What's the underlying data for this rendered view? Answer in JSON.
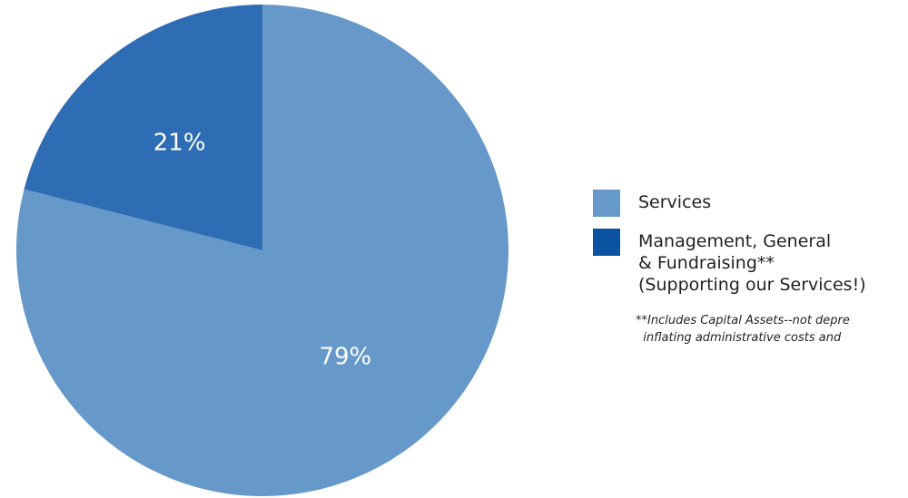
{
  "chart_data": {
    "type": "pie",
    "slices": [
      {
        "label": "Services",
        "value": 79,
        "display": "79%",
        "color": "#6699c9"
      },
      {
        "label": "Management, General\n& Fundraising**\n(Supporting our Services!)",
        "value": 21,
        "display": "21%",
        "color": "#2e6db4"
      }
    ],
    "legend": {
      "placement": "right",
      "items": [
        {
          "label": "Services",
          "color": "#6699c9"
        },
        {
          "label": "Management, General\n& Fundraising**\n(Supporting our Services!)",
          "color": "#0b53a0"
        }
      ]
    }
  },
  "footnote": "**Includes Capital Assets--not depre\n  inflating administrative costs and"
}
